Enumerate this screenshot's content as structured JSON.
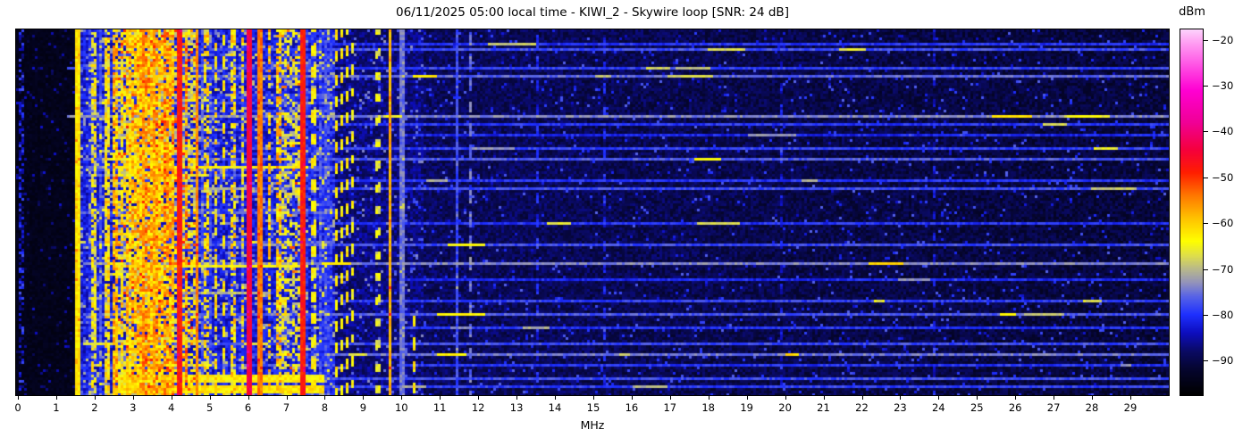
{
  "header": {
    "title": "06/11/2025 05:00 local time - KIWI_2 - Skywire loop [SNR: 24 dB]"
  },
  "chart_data": {
    "type": "heatmap",
    "title": "06/11/2025 05:00 local time - KIWI_2 - Skywire loop [SNR: 24 dB]",
    "datetime_local": "06/11/2025 05:00",
    "receiver": "KIWI_2",
    "antenna": "Skywire loop",
    "snr_db": 24,
    "xlabel": "MHz",
    "x_range_mhz": [
      0,
      30
    ],
    "x_ticks": [
      0,
      1,
      2,
      3,
      4,
      5,
      6,
      7,
      8,
      9,
      10,
      11,
      12,
      13,
      14,
      15,
      16,
      17,
      18,
      19,
      20,
      21,
      22,
      23,
      24,
      25,
      26,
      27,
      28,
      29
    ],
    "y_axis": "time (no ticks or labels shown)",
    "legend_position": "right colorbar",
    "grid": false,
    "colorbar": {
      "label": "dBm",
      "tick_values": [
        -20,
        -30,
        -40,
        -50,
        -60,
        -70,
        -80,
        -90
      ],
      "scale_max_dbm": -17.75,
      "scale_min_dbm": -97.5,
      "colormap_stops": [
        [
          -97.5,
          "#000000"
        ],
        [
          -92,
          "#05052e"
        ],
        [
          -88,
          "#0a0a64"
        ],
        [
          -84,
          "#0d0dbe"
        ],
        [
          -80,
          "#1e30ff"
        ],
        [
          -76,
          "#5864e6"
        ],
        [
          -73,
          "#9393bb"
        ],
        [
          -70,
          "#b9b98a"
        ],
        [
          -67,
          "#e0e048"
        ],
        [
          -64,
          "#ffff00"
        ],
        [
          -59,
          "#ffc300"
        ],
        [
          -54,
          "#ff7800"
        ],
        [
          -49,
          "#ff1e00"
        ],
        [
          -44,
          "#f5003c"
        ],
        [
          -38,
          "#f00096"
        ],
        [
          -31,
          "#ff00d2"
        ],
        [
          -25,
          "#ff5ae6"
        ],
        [
          -20,
          "#ffa8f4"
        ],
        [
          -17.75,
          "#fcd2fc"
        ]
      ]
    },
    "noise_floor_bands_dbm": [
      {
        "f0": -1.0,
        "f1": 1.62,
        "base": -95.5,
        "spread": 2.5,
        "speckle_p": 0.05,
        "speckle_lvl": -87
      },
      {
        "f0": 1.62,
        "f1": 8.25,
        "base": -86.0,
        "spread": 7.0,
        "speckle_p": 0.14,
        "speckle_lvl": -72
      },
      {
        "f0": 8.25,
        "f1": 10.6,
        "base": -90.0,
        "spread": 6.0,
        "speckle_p": 0.08,
        "speckle_lvl": -77
      },
      {
        "f0": 10.6,
        "f1": 31.0,
        "base": -91.5,
        "spread": 5.5,
        "speckle_p": 0.04,
        "speckle_lvl": -80
      }
    ],
    "busy_clusters": [
      {
        "f0": 2.55,
        "f1": 4.65,
        "p": 0.52,
        "lvl": -73,
        "span": 14,
        "hot_p": 0.07,
        "hot_lvl": -56
      },
      {
        "f0": 6.88,
        "f1": 7.42,
        "p": 0.42,
        "lvl": -72,
        "span": 12,
        "hot_p": 0.03,
        "hot_lvl": -58
      }
    ],
    "vertical_signals": [
      {
        "f": 0.07,
        "hw": 0.05,
        "level": -84,
        "mode": "speckle",
        "duty": 0.5
      },
      {
        "f": 1.57,
        "hw": 0.03,
        "level": -62,
        "mode": "solid",
        "duty": 1
      },
      {
        "f": 1.98,
        "hw": 0.03,
        "level": -66,
        "mode": "speckle",
        "duty": 0.7
      },
      {
        "f": 2.33,
        "hw": 0.03,
        "level": -64,
        "mode": "speckle",
        "duty": 0.75
      },
      {
        "f": 2.52,
        "hw": 0.04,
        "level": -60,
        "mode": "speckle",
        "duty": 0.8
      },
      {
        "f": 2.7,
        "hw": 0.03,
        "level": -63,
        "mode": "speckle",
        "duty": 0.6
      },
      {
        "f": 2.88,
        "hw": 0.05,
        "level": -62,
        "mode": "speckle",
        "duty": 0.7
      },
      {
        "f": 3.05,
        "hw": 0.05,
        "level": -61,
        "mode": "speckle",
        "duty": 0.75
      },
      {
        "f": 3.2,
        "hw": 0.06,
        "level": -60,
        "mode": "speckle",
        "duty": 0.8
      },
      {
        "f": 3.33,
        "hw": 0.05,
        "level": -58,
        "mode": "speckle",
        "duty": 0.8
      },
      {
        "f": 3.48,
        "hw": 0.06,
        "level": -60,
        "mode": "speckle",
        "duty": 0.8
      },
      {
        "f": 3.62,
        "hw": 0.05,
        "level": -59,
        "mode": "speckle",
        "duty": 0.75
      },
      {
        "f": 3.75,
        "hw": 0.05,
        "level": -61,
        "mode": "speckle",
        "duty": 0.7
      },
      {
        "f": 3.88,
        "hw": 0.05,
        "level": -58,
        "mode": "speckle",
        "duty": 0.8
      },
      {
        "f": 4.02,
        "hw": 0.05,
        "level": -60,
        "mode": "speckle",
        "duty": 0.75
      },
      {
        "f": 4.22,
        "hw": 0.045,
        "level": -48,
        "mode": "solid",
        "duty": 1
      },
      {
        "f": 4.4,
        "hw": 0.04,
        "level": -58,
        "mode": "speckle",
        "duty": 0.7
      },
      {
        "f": 4.65,
        "hw": 0.03,
        "level": -55,
        "mode": "solid",
        "duty": 1
      },
      {
        "f": 4.9,
        "hw": 0.04,
        "level": -63,
        "mode": "speckle",
        "duty": 0.55
      },
      {
        "f": 5.15,
        "hw": 0.03,
        "level": -64,
        "mode": "speckle",
        "duty": 0.5
      },
      {
        "f": 5.35,
        "hw": 0.03,
        "level": -62,
        "mode": "dash",
        "duty": 0.5
      },
      {
        "f": 5.6,
        "hw": 0.04,
        "level": -63,
        "mode": "speckle",
        "duty": 0.55
      },
      {
        "f": 5.85,
        "hw": 0.03,
        "level": -64,
        "mode": "speckle",
        "duty": 0.5
      },
      {
        "f": 6.05,
        "hw": 0.04,
        "level": -44,
        "mode": "solid",
        "duty": 1
      },
      {
        "f": 6.3,
        "hw": 0.03,
        "level": -54,
        "mode": "solid",
        "duty": 1
      },
      {
        "f": 6.55,
        "hw": 0.04,
        "level": -62,
        "mode": "speckle",
        "duty": 0.6
      },
      {
        "f": 6.78,
        "hw": 0.04,
        "level": -61,
        "mode": "speckle",
        "duty": 0.65
      },
      {
        "f": 7.45,
        "hw": 0.04,
        "level": -48,
        "mode": "solid",
        "duty": 1
      },
      {
        "f": 7.7,
        "hw": 0.03,
        "level": -63,
        "mode": "dash",
        "duty": 0.5
      },
      {
        "f": 8.32,
        "hw": 0.03,
        "level": -62,
        "mode": "dash",
        "duty": 0.45
      },
      {
        "f": 8.45,
        "hw": 0.03,
        "level": -63,
        "mode": "dash",
        "duty": 0.45
      },
      {
        "f": 8.58,
        "hw": 0.03,
        "level": -62,
        "mode": "dash",
        "duty": 0.45
      },
      {
        "f": 8.72,
        "hw": 0.03,
        "level": -64,
        "mode": "dash",
        "duty": 0.4
      },
      {
        "f": 9.4,
        "hw": 0.03,
        "level": -66,
        "mode": "dash",
        "duty": 0.3
      },
      {
        "f": 9.7,
        "hw": 0.04,
        "level": -58,
        "mode": "solid",
        "duty": 1
      },
      {
        "f": 10.02,
        "hw": 0.03,
        "level": -75,
        "mode": "solid",
        "duty": 1
      },
      {
        "f": 10.35,
        "hw": 0.03,
        "level": -62,
        "mode": "dash",
        "duty": 0.5,
        "t0": 0.78,
        "t1": 1.0
      },
      {
        "f": 11.47,
        "hw": 0.03,
        "level": -78,
        "mode": "solid",
        "duty": 1
      },
      {
        "f": 11.78,
        "hw": 0.03,
        "level": -75,
        "mode": "dash",
        "duty": 0.6
      },
      {
        "f": 13.55,
        "hw": 0.03,
        "level": -81,
        "mode": "dash",
        "duty": 0.5
      },
      {
        "f": 15.3,
        "hw": 0.03,
        "level": -81,
        "mode": "dash",
        "duty": 0.4
      },
      {
        "f": 19.9,
        "hw": 0.03,
        "level": -83,
        "mode": "dash",
        "duty": 0.4
      },
      {
        "f": 23.9,
        "hw": 0.03,
        "level": -83,
        "mode": "dash",
        "duty": 0.35
      }
    ],
    "busy_band_rows": [
      {
        "t": 0.13,
        "f0": 2.7,
        "f1": 4.8,
        "level": -68,
        "th": 1
      },
      {
        "t": 0.375,
        "f0": 2.5,
        "f1": 7.6,
        "level": -64,
        "th": 1
      },
      {
        "t": 0.4,
        "f0": 2.5,
        "f1": 5.0,
        "level": -66,
        "th": 1
      },
      {
        "t": 0.645,
        "f0": 2.5,
        "f1": 7.6,
        "level": -64,
        "th": 1
      },
      {
        "t": 0.72,
        "f0": 4.3,
        "f1": 6.6,
        "level": -71,
        "th": 1
      },
      {
        "t": 0.85,
        "f0": 2.5,
        "f1": 4.8,
        "level": -67,
        "th": 1
      },
      {
        "t": 0.917,
        "f0": 2.5,
        "f1": 5.0,
        "level": -66,
        "th": 1
      },
      {
        "t": 0.955,
        "f0": 2.5,
        "f1": 8.0,
        "level": -63,
        "th": 2
      },
      {
        "t": 0.985,
        "f0": 2.5,
        "f1": 8.0,
        "level": -62,
        "th": 2
      }
    ],
    "horizontal_events": [
      {
        "t": 0.037,
        "f0": 8.0,
        "f1": 30,
        "level": -80,
        "segs": 2
      },
      {
        "t": 0.055,
        "f0": 5.0,
        "f1": 30,
        "level": -78,
        "segs": 3
      },
      {
        "t": 0.103,
        "f0": 1.3,
        "f1": 30,
        "level": -79,
        "segs": 2
      },
      {
        "t": 0.125,
        "f0": 2.2,
        "f1": 30,
        "level": -76,
        "segs": 3
      },
      {
        "t": 0.237,
        "f0": 1.3,
        "f1": 30,
        "level": -74,
        "segs": 4
      },
      {
        "t": 0.262,
        "f0": 8.0,
        "f1": 30,
        "level": -80,
        "segs": 1
      },
      {
        "t": 0.29,
        "f0": 10.0,
        "f1": 30,
        "level": -81,
        "segs": 1
      },
      {
        "t": 0.327,
        "f0": 6.0,
        "f1": 30,
        "level": -79,
        "segs": 2
      },
      {
        "t": 0.351,
        "f0": 1.7,
        "f1": 30,
        "level": -77,
        "segs": 3
      },
      {
        "t": 0.416,
        "f0": 8.0,
        "f1": 30,
        "level": -80,
        "segs": 2
      },
      {
        "t": 0.437,
        "f0": 4.0,
        "f1": 30,
        "level": -78,
        "segs": 2
      },
      {
        "t": 0.53,
        "f0": 8.0,
        "f1": 30,
        "level": -80,
        "segs": 2
      },
      {
        "t": 0.587,
        "f0": 1.7,
        "f1": 30,
        "level": -78,
        "segs": 2
      },
      {
        "t": 0.64,
        "f0": 1.7,
        "f1": 30,
        "level": -74,
        "segs": 4
      },
      {
        "t": 0.68,
        "f0": 10.0,
        "f1": 30,
        "level": -81,
        "segs": 1
      },
      {
        "t": 0.74,
        "f0": 8.0,
        "f1": 30,
        "level": -79,
        "segs": 2
      },
      {
        "t": 0.775,
        "f0": 1.7,
        "f1": 30,
        "level": -77,
        "segs": 3
      },
      {
        "t": 0.817,
        "f0": 10.0,
        "f1": 30,
        "level": -80,
        "segs": 2
      },
      {
        "t": 0.856,
        "f0": 1.7,
        "f1": 30,
        "level": -78,
        "segs": 2
      },
      {
        "t": 0.89,
        "f0": 8.0,
        "f1": 30,
        "level": -75,
        "segs": 4
      },
      {
        "t": 0.914,
        "f0": 10.0,
        "f1": 30,
        "level": -80,
        "segs": 1
      },
      {
        "t": 0.95,
        "f0": 1.7,
        "f1": 30,
        "level": -78,
        "segs": 2
      },
      {
        "t": 0.975,
        "f0": 8.0,
        "f1": 30,
        "level": -79,
        "segs": 2
      }
    ]
  }
}
